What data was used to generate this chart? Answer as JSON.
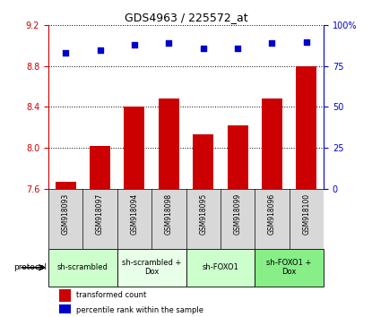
{
  "title": "GDS4963 / 225572_at",
  "samples": [
    "GSM918093",
    "GSM918097",
    "GSM918094",
    "GSM918098",
    "GSM918095",
    "GSM918099",
    "GSM918096",
    "GSM918100"
  ],
  "bar_values": [
    7.67,
    8.02,
    8.4,
    8.48,
    8.13,
    8.22,
    8.48,
    8.8
  ],
  "scatter_values": [
    83,
    85,
    88,
    89,
    86,
    86,
    89,
    90
  ],
  "ylim_left": [
    7.6,
    9.2
  ],
  "ylim_right": [
    0,
    100
  ],
  "yticks_left": [
    7.6,
    8.0,
    8.4,
    8.8,
    9.2
  ],
  "yticks_right": [
    0,
    25,
    50,
    75,
    100
  ],
  "bar_color": "#cc0000",
  "scatter_color": "#0000cc",
  "bar_bottom": 7.6,
  "groups": [
    {
      "label": "sh-scrambled",
      "start": 0,
      "end": 2,
      "color": "#ccffcc"
    },
    {
      "label": "sh-scrambled +\nDox",
      "start": 2,
      "end": 4,
      "color": "#e8ffe8"
    },
    {
      "label": "sh-FOXO1",
      "start": 4,
      "end": 6,
      "color": "#ccffcc"
    },
    {
      "label": "sh-FOXO1 +\nDox",
      "start": 6,
      "end": 8,
      "color": "#88ee88"
    }
  ],
  "legend_bar_label": "transformed count",
  "legend_scatter_label": "percentile rank within the sample",
  "protocol_label": "protocol",
  "bg_color": "#d8d8d8",
  "plot_bg": "#ffffff"
}
